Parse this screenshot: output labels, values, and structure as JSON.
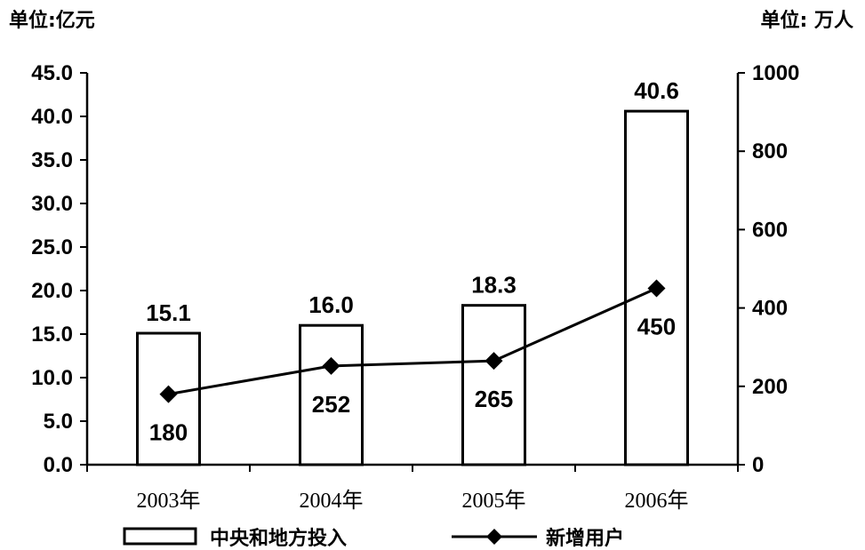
{
  "chart_data": {
    "type": "bar",
    "categories": [
      "2003年",
      "2004年",
      "2005年",
      "2006年"
    ],
    "y_left_unit": "单位:亿元",
    "y_right_unit": "单位: 万人",
    "ylim_left": [
      0,
      45
    ],
    "ylim_right": [
      0,
      1000
    ],
    "yticks_left": [
      "0.0",
      "5.0",
      "10.0",
      "15.0",
      "20.0",
      "25.0",
      "30.0",
      "35.0",
      "40.0",
      "45.0"
    ],
    "yticks_right": [
      "0",
      "200",
      "400",
      "600",
      "800",
      "1000"
    ],
    "series": [
      {
        "name": "中央和地方投入",
        "type": "bar",
        "axis": "left",
        "values": [
          15.1,
          16.0,
          18.3,
          40.6
        ],
        "labels": [
          "15.1",
          "16.0",
          "18.3",
          "40.6"
        ]
      },
      {
        "name": "新增用户",
        "type": "line",
        "axis": "right",
        "marker": "diamond",
        "values": [
          180,
          252,
          265,
          450
        ],
        "labels": [
          "180",
          "252",
          "265",
          "450"
        ]
      }
    ],
    "grid": false,
    "legend_position": "bottom"
  }
}
